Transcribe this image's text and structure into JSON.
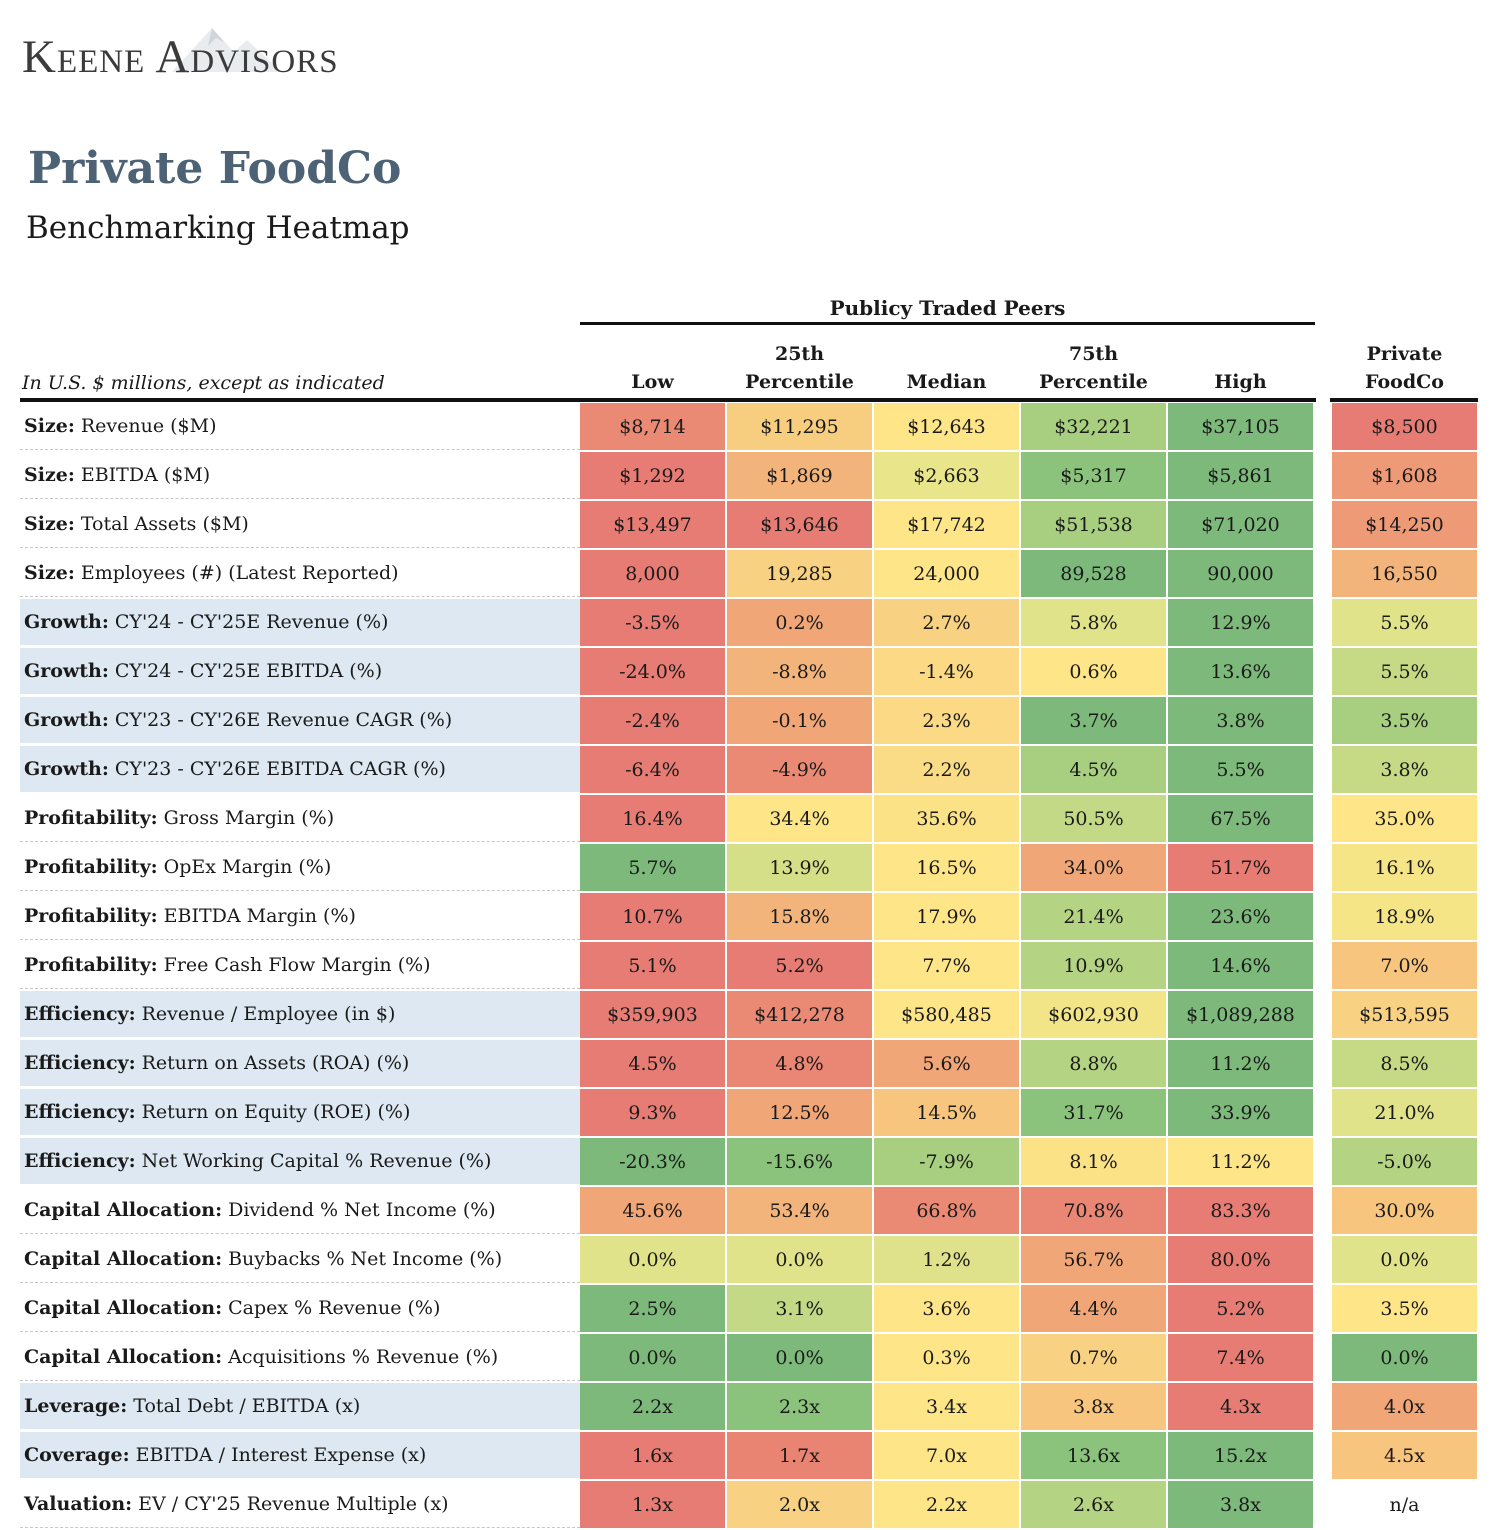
{
  "logo": {
    "text": "Keene Advisors"
  },
  "title": "Private FoodCo",
  "subtitle": "Benchmarking Heatmap",
  "group_header": "Publicy Traded Peers",
  "units_note": "In U.S. $ millions, except as indicated",
  "columns": {
    "low": "Low",
    "p25_a": "25th",
    "p25_b": "Percentile",
    "median": "Median",
    "p75_a": "75th",
    "p75_b": "Percentile",
    "high": "High",
    "pc_a": "Private",
    "pc_b": "FoodCo"
  },
  "colors": {
    "red": "#e67c73",
    "red_orange": "#ee9175",
    "orange": "#f3b47b",
    "light_orange": "#f8cf80",
    "yellow": "#fde68a",
    "yellow_green": "#dfe28a",
    "light_green": "#c3d985",
    "green": "#9bcb7e",
    "dark_green": "#7cb97a",
    "row_shade": "#dde8f3"
  },
  "rows": [
    {
      "category": "Size:",
      "metric": "Revenue ($M)",
      "shaded": false,
      "values": [
        "$8,714",
        "$11,295",
        "$12,643",
        "$32,221",
        "$37,105"
      ],
      "pc": "$8,500",
      "colors": [
        "#eb8a74",
        "#f7cd80",
        "#fde588",
        "#a7cf7f",
        "#7cb97a"
      ],
      "pc_color": "#e67c73"
    },
    {
      "category": "Size:",
      "metric": "EBITDA ($M)",
      "shaded": false,
      "values": [
        "$1,292",
        "$1,869",
        "$2,663",
        "$5,317",
        "$5,861"
      ],
      "pc": "$1,608",
      "colors": [
        "#e67c73",
        "#f3b47b",
        "#e8e58a",
        "#8cc37c",
        "#7cb97a"
      ],
      "pc_color": "#ee9a77"
    },
    {
      "category": "Size:",
      "metric": "Total Assets ($M)",
      "shaded": false,
      "values": [
        "$13,497",
        "$13,646",
        "$17,742",
        "$51,538",
        "$71,020"
      ],
      "pc": "$14,250",
      "colors": [
        "#e67c73",
        "#e67c73",
        "#fde588",
        "#a7cf7f",
        "#7cb97a"
      ],
      "pc_color": "#ee9a77"
    },
    {
      "category": "Size:",
      "metric": "Employees (#) (Latest Reported)",
      "shaded": false,
      "values": [
        "8,000",
        "19,285",
        "24,000",
        "89,528",
        "90,000"
      ],
      "pc": "16,550",
      "colors": [
        "#e67c73",
        "#f8d282",
        "#fde588",
        "#7cb97a",
        "#7cb97a"
      ],
      "pc_color": "#f3b47b"
    },
    {
      "category": "Growth:",
      "metric": "CY'24 - CY'25E Revenue (%)",
      "shaded": true,
      "values": [
        "-3.5%",
        "0.2%",
        "2.7%",
        "5.8%",
        "12.9%"
      ],
      "pc": "5.5%",
      "colors": [
        "#e67c73",
        "#f0a677",
        "#f8d282",
        "#e0e38a",
        "#7cb97a"
      ],
      "pc_color": "#e0e38a"
    },
    {
      "category": "Growth:",
      "metric": "CY'24 - CY'25E EBITDA (%)",
      "shaded": true,
      "values": [
        "-24.0%",
        "-8.8%",
        "-1.4%",
        "0.6%",
        "13.6%"
      ],
      "pc": "5.5%",
      "colors": [
        "#e67c73",
        "#f3b47b",
        "#fbd985",
        "#fde588",
        "#7cb97a"
      ],
      "pc_color": "#c6da86"
    },
    {
      "category": "Growth:",
      "metric": "CY'23 - CY'26E Revenue CAGR (%)",
      "shaded": true,
      "values": [
        "-2.4%",
        "-0.1%",
        "2.3%",
        "3.7%",
        "3.8%"
      ],
      "pc": "3.5%",
      "colors": [
        "#e67c73",
        "#f0a677",
        "#fbd985",
        "#7cb97a",
        "#7cb97a"
      ],
      "pc_color": "#a7cf7f"
    },
    {
      "category": "Growth:",
      "metric": "CY'23 - CY'26E EBITDA CAGR (%)",
      "shaded": true,
      "values": [
        "-6.4%",
        "-4.9%",
        "2.2%",
        "4.5%",
        "5.5%"
      ],
      "pc": "3.8%",
      "colors": [
        "#e67c73",
        "#eb8a74",
        "#fbdc86",
        "#a7cf7f",
        "#7cb97a"
      ],
      "pc_color": "#c6da86"
    },
    {
      "category": "Profitability:",
      "metric": "Gross Margin (%)",
      "shaded": false,
      "values": [
        "16.4%",
        "34.4%",
        "35.6%",
        "50.5%",
        "67.5%"
      ],
      "pc": "35.0%",
      "colors": [
        "#e67c73",
        "#fde588",
        "#fbe287",
        "#c3d985",
        "#7cb97a"
      ],
      "pc_color": "#fde588"
    },
    {
      "category": "Profitability:",
      "metric": "OpEx Margin (%)",
      "shaded": false,
      "values": [
        "5.7%",
        "13.9%",
        "16.5%",
        "34.0%",
        "51.7%"
      ],
      "pc": "16.1%",
      "colors": [
        "#7cb97a",
        "#d5df88",
        "#fde588",
        "#f0a677",
        "#e67c73"
      ],
      "pc_color": "#f6e587"
    },
    {
      "category": "Profitability:",
      "metric": "EBITDA Margin (%)",
      "shaded": false,
      "values": [
        "10.7%",
        "15.8%",
        "17.9%",
        "21.4%",
        "23.6%"
      ],
      "pc": "18.9%",
      "colors": [
        "#e67c73",
        "#f3b47b",
        "#fde588",
        "#b5d483",
        "#7cb97a"
      ],
      "pc_color": "#f6e587"
    },
    {
      "category": "Profitability:",
      "metric": "Free Cash Flow Margin (%)",
      "shaded": false,
      "values": [
        "5.1%",
        "5.2%",
        "7.7%",
        "10.9%",
        "14.6%"
      ],
      "pc": "7.0%",
      "colors": [
        "#e67c73",
        "#e67c73",
        "#fde588",
        "#b5d483",
        "#7cb97a"
      ],
      "pc_color": "#f8c57f"
    },
    {
      "category": "Efficiency:",
      "metric": "Revenue / Employee (in $)",
      "shaded": true,
      "values": [
        "$359,903",
        "$412,278",
        "$580,485",
        "$602,930",
        "$1,089,288"
      ],
      "pc": "$513,595",
      "colors": [
        "#e67c73",
        "#eb8a74",
        "#fde588",
        "#f2e587",
        "#7cb97a"
      ],
      "pc_color": "#f8d282"
    },
    {
      "category": "Efficiency:",
      "metric": "Return on Assets (ROA) (%)",
      "shaded": true,
      "values": [
        "4.5%",
        "4.8%",
        "5.6%",
        "8.8%",
        "11.2%"
      ],
      "pc": "8.5%",
      "colors": [
        "#e67c73",
        "#ea8674",
        "#f0a677",
        "#b5d483",
        "#7cb97a"
      ],
      "pc_color": "#c6da86"
    },
    {
      "category": "Efficiency:",
      "metric": "Return on Equity (ROE) (%)",
      "shaded": true,
      "values": [
        "9.3%",
        "12.5%",
        "14.5%",
        "31.7%",
        "33.9%"
      ],
      "pc": "21.0%",
      "colors": [
        "#e67c73",
        "#f0a677",
        "#f8c57f",
        "#8cc37c",
        "#7cb97a"
      ],
      "pc_color": "#e0e38a"
    },
    {
      "category": "Efficiency:",
      "metric": "Net Working Capital % Revenue (%)",
      "shaded": true,
      "values": [
        "-20.3%",
        "-15.6%",
        "-7.9%",
        "8.1%",
        "11.2%"
      ],
      "pc": "-5.0%",
      "colors": [
        "#7cb97a",
        "#8cc37c",
        "#a7cf7f",
        "#fbe287",
        "#fde588"
      ],
      "pc_color": "#b5d483"
    },
    {
      "category": "Capital Allocation:",
      "metric": "Dividend % Net Income (%)",
      "shaded": false,
      "values": [
        "45.6%",
        "53.4%",
        "66.8%",
        "70.8%",
        "83.3%"
      ],
      "pc": "30.0%",
      "colors": [
        "#f0a677",
        "#f3b47b",
        "#eb8a74",
        "#ea8674",
        "#e67c73"
      ],
      "pc_color": "#f8c57f"
    },
    {
      "category": "Capital Allocation:",
      "metric": "Buybacks % Net Income (%)",
      "shaded": false,
      "values": [
        "0.0%",
        "0.0%",
        "1.2%",
        "56.7%",
        "80.0%"
      ],
      "pc": "0.0%",
      "colors": [
        "#e0e38a",
        "#e0e38a",
        "#dfe28a",
        "#f0a677",
        "#e67c73"
      ],
      "pc_color": "#e0e38a"
    },
    {
      "category": "Capital Allocation:",
      "metric": "Capex % Revenue (%)",
      "shaded": false,
      "values": [
        "2.5%",
        "3.1%",
        "3.6%",
        "4.4%",
        "5.2%"
      ],
      "pc": "3.5%",
      "colors": [
        "#7cb97a",
        "#c3d985",
        "#fde588",
        "#f0a677",
        "#e67c73"
      ],
      "pc_color": "#fde588"
    },
    {
      "category": "Capital Allocation:",
      "metric": "Acquisitions % Revenue (%)",
      "shaded": false,
      "values": [
        "0.0%",
        "0.0%",
        "0.3%",
        "0.7%",
        "7.4%"
      ],
      "pc": "0.0%",
      "colors": [
        "#7cb97a",
        "#7cb97a",
        "#fde588",
        "#f8d282",
        "#e67c73"
      ],
      "pc_color": "#7cb97a"
    },
    {
      "category": "Leverage:",
      "metric": "Total Debt / EBITDA (x)",
      "shaded": true,
      "values": [
        "2.2x",
        "2.3x",
        "3.4x",
        "3.8x",
        "4.3x"
      ],
      "pc": "4.0x",
      "colors": [
        "#7cb97a",
        "#8cc37c",
        "#fde588",
        "#f8c57f",
        "#e67c73"
      ],
      "pc_color": "#f0a677"
    },
    {
      "category": "Coverage:",
      "metric": "EBITDA / Interest Expense (x)",
      "shaded": true,
      "values": [
        "1.6x",
        "1.7x",
        "7.0x",
        "13.6x",
        "15.2x"
      ],
      "pc": "4.5x",
      "colors": [
        "#e67c73",
        "#e98473",
        "#fde588",
        "#8cc37c",
        "#7cb97a"
      ],
      "pc_color": "#f8c57f"
    },
    {
      "category": "Valuation:",
      "metric": "EV / CY'25 Revenue Multiple (x)",
      "shaded": false,
      "values": [
        "1.3x",
        "2.0x",
        "2.2x",
        "2.6x",
        "3.8x"
      ],
      "pc": "n/a",
      "colors": [
        "#e67c73",
        "#f8d282",
        "#fde588",
        "#b5d483",
        "#7cb97a"
      ],
      "pc_color": "#ffffff"
    }
  ]
}
